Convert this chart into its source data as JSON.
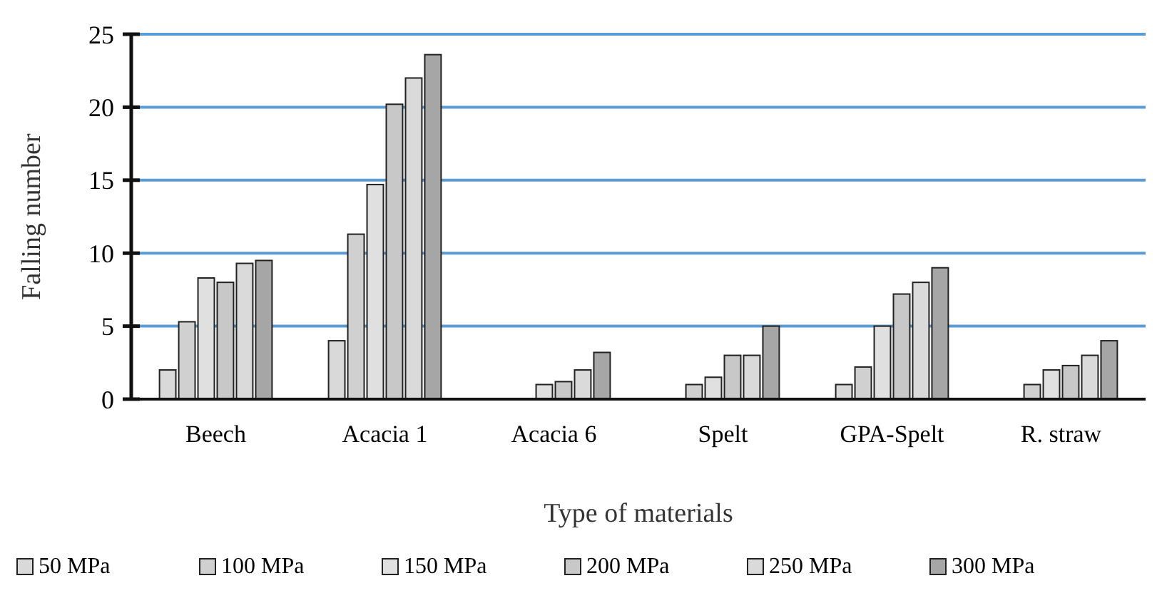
{
  "chart_data": {
    "type": "bar",
    "xlabel": "Type of materials",
    "ylabel": "Falling number",
    "categories": [
      "Beech",
      "Acacia 1",
      "Acacia 6",
      "Spelt",
      "GPA-Spelt",
      "R. straw"
    ],
    "series": [
      {
        "name": "50 MPa",
        "color": "#d9d9d9",
        "values": [
          2,
          4,
          null,
          null,
          1,
          null
        ]
      },
      {
        "name": "100 MPa",
        "color": "#d0d0d0",
        "values": [
          5.3,
          11.3,
          null,
          1,
          2.2,
          1
        ]
      },
      {
        "name": "150 MPa",
        "color": "#e0e0e0",
        "values": [
          8.3,
          14.7,
          1,
          1.5,
          5,
          2
        ]
      },
      {
        "name": "200 MPa",
        "color": "#c8c8c8",
        "values": [
          8,
          20.2,
          1.2,
          3,
          7.2,
          2.3
        ]
      },
      {
        "name": "250 MPa",
        "color": "#dadada",
        "values": [
          9.3,
          22,
          2,
          3,
          8,
          3
        ]
      },
      {
        "name": "300 MPa",
        "color": "#a6a6a6",
        "values": [
          9.5,
          23.6,
          3.2,
          5,
          9,
          4
        ]
      }
    ],
    "ylim": [
      0,
      25
    ],
    "yticks": [
      0,
      5,
      10,
      15,
      20,
      25
    ],
    "grid": "y",
    "legend": "bottom"
  }
}
